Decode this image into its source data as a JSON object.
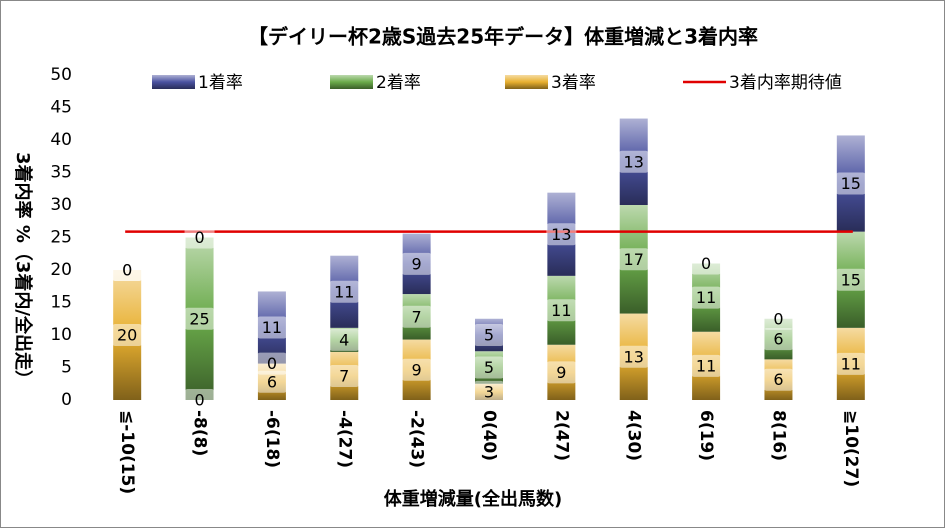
{
  "chart_data": {
    "type": "stacked_bar",
    "title": "【デイリー杯2歳S過去25年データ】体重増減と3着内率",
    "x_label": "体重増減量(全出馬数)",
    "y_label": "3着内率 %（3着内/全出走）",
    "categories": [
      "≦-10(15)",
      "-8(8)",
      "-6(18)",
      "-4(27)",
      "-2(43)",
      "0(40)",
      "2(47)",
      "4(30)",
      "6(19)",
      "8(16)",
      "≧10(27)"
    ],
    "series": [
      {
        "name": "3着率",
        "color": "#e8b030",
        "values": [
          20,
          0,
          5.6,
          7.4,
          9.3,
          2.5,
          8.5,
          13.3,
          10.5,
          6.25,
          11.1
        ],
        "value_labels": [
          "20",
          "0",
          "6",
          "7",
          "9",
          "3",
          "9",
          "13",
          "11",
          "6",
          "11"
        ]
      },
      {
        "name": "2着率",
        "color": "#6aaa4a",
        "values": [
          0,
          25,
          0,
          3.7,
          7.0,
          5,
          10.6,
          16.7,
          10.5,
          6.25,
          14.8
        ],
        "value_labels": [
          "0",
          "25",
          "0",
          "4",
          "7",
          "5",
          "11",
          "17",
          "11",
          "6",
          "15"
        ]
      },
      {
        "name": "1着率",
        "color": "#4a52a0",
        "values": [
          0,
          0,
          11.1,
          11.1,
          9.3,
          5,
          12.8,
          13.3,
          0,
          0,
          14.8
        ],
        "value_labels": [
          "0",
          "0",
          "11",
          "11",
          "9",
          "5",
          "13",
          "13",
          "0",
          "0",
          "15"
        ]
      }
    ],
    "reference_line": {
      "name": "3着内率期待値",
      "value": 25.9,
      "color": "#e00000"
    },
    "ylim": [
      0,
      50
    ],
    "yticks": [
      0,
      5,
      10,
      15,
      20,
      25,
      30,
      35,
      40,
      45,
      50
    ]
  }
}
